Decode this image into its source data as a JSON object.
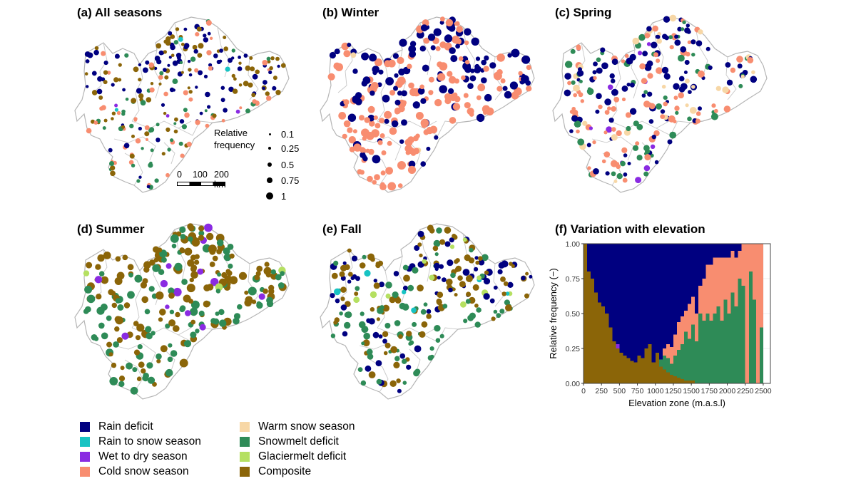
{
  "panels": {
    "a": "(a) All seasons",
    "b": "(b) Winter",
    "c": "(c) Spring",
    "d": "(d) Summer",
    "e": "(e) Fall",
    "f": "(f) Variation with elevation"
  },
  "size_legend": {
    "title_line1": "Relative",
    "title_line2": "frequency",
    "values": [
      "0.1",
      "0.25",
      "0.5",
      "0.75",
      "1"
    ]
  },
  "scale_bar": {
    "t0": "0",
    "t1": "100",
    "t2": "200 km"
  },
  "classes": [
    {
      "name": "Rain deficit",
      "color": "#000080"
    },
    {
      "name": "Rain to snow season",
      "color": "#17c3c3"
    },
    {
      "name": "Wet to dry season",
      "color": "#8a2be2"
    },
    {
      "name": "Cold snow season",
      "color": "#f88d70"
    },
    {
      "name": "Warm snow season",
      "color": "#f7d7a6"
    },
    {
      "name": "Snowmelt deficit",
      "color": "#2e8b57"
    },
    {
      "name": "Glaciermelt deficit",
      "color": "#b5e061"
    },
    {
      "name": "Composite",
      "color": "#8b6508"
    }
  ],
  "chart_data": {
    "type": "area",
    "stacked": true,
    "xlabel": "Elevation zone (m.a.s.l)",
    "ylabel": "Relative frequency (−)",
    "xlim": [
      0,
      2600
    ],
    "ylim": [
      0,
      1
    ],
    "x_ticks": [
      "0",
      "250",
      "500",
      "750",
      "1000",
      "1250",
      "1500",
      "1750",
      "2000",
      "2250",
      "2500"
    ],
    "y_ticks": [
      "0.00",
      "0.25",
      "0.50",
      "0.75",
      "1.00"
    ],
    "bin_width": 50,
    "x": [
      0,
      50,
      100,
      150,
      200,
      250,
      300,
      350,
      400,
      450,
      500,
      550,
      600,
      650,
      700,
      750,
      800,
      850,
      900,
      950,
      1000,
      1050,
      1100,
      1150,
      1200,
      1250,
      1300,
      1350,
      1400,
      1450,
      1500,
      1550,
      1600,
      1650,
      1700,
      1750,
      1800,
      1850,
      1900,
      1950,
      2000,
      2050,
      2100,
      2150,
      2200,
      2250,
      2300,
      2350,
      2400,
      2450,
      2500
    ],
    "series": [
      {
        "name": "Composite",
        "values": [
          1.0,
          0.8,
          0.75,
          0.65,
          0.58,
          0.55,
          0.5,
          0.4,
          0.3,
          0.25,
          0.22,
          0.2,
          0.18,
          0.16,
          0.15,
          0.2,
          0.18,
          0.25,
          0.28,
          0.15,
          0.22,
          0.12,
          0.1,
          0.08,
          0.06,
          0.05,
          0.04,
          0.03,
          0.02,
          0.02,
          0.02,
          0,
          0,
          0,
          0,
          0,
          0,
          0,
          0,
          0,
          0,
          0,
          0,
          0,
          0,
          0,
          0,
          0,
          0,
          0,
          0
        ]
      },
      {
        "name": "Snowmelt deficit",
        "values": [
          0,
          0,
          0,
          0,
          0,
          0,
          0,
          0,
          0,
          0,
          0,
          0,
          0,
          0,
          0,
          0,
          0,
          0,
          0,
          0,
          0,
          0.05,
          0.1,
          0.1,
          0.08,
          0.15,
          0.2,
          0.25,
          0.35,
          0.3,
          0.4,
          0.3,
          0.5,
          0.45,
          0.5,
          0.45,
          0.5,
          0.55,
          0.45,
          0.6,
          0.5,
          0.65,
          0.55,
          0.75,
          0.7,
          0,
          0.8,
          0.6,
          0,
          0.4,
          0
        ]
      },
      {
        "name": "Cold snow season",
        "values": [
          0,
          0,
          0,
          0,
          0,
          0,
          0,
          0,
          0,
          0,
          0,
          0,
          0,
          0,
          0,
          0,
          0,
          0,
          0,
          0,
          0,
          0,
          0.05,
          0.1,
          0.12,
          0.15,
          0.2,
          0.2,
          0.15,
          0.25,
          0.2,
          0.2,
          0.2,
          0.3,
          0.35,
          0.4,
          0.4,
          0.35,
          0.45,
          0.3,
          0.4,
          0.3,
          0.35,
          0.2,
          0.3,
          1.0,
          0.2,
          0.4,
          1.0,
          0.6,
          0
        ]
      },
      {
        "name": "Wet to dry season",
        "values": [
          0,
          0,
          0,
          0,
          0,
          0,
          0,
          0,
          0,
          0.03,
          0,
          0,
          0,
          0,
          0,
          0,
          0,
          0,
          0,
          0,
          0,
          0,
          0,
          0,
          0,
          0,
          0,
          0,
          0,
          0,
          0,
          0,
          0,
          0,
          0,
          0,
          0,
          0,
          0,
          0,
          0,
          0,
          0,
          0,
          0,
          0,
          0,
          0,
          0,
          0,
          0
        ]
      },
      {
        "name": "Rain deficit",
        "values": [
          0,
          0.2,
          0.25,
          0.35,
          0.42,
          0.45,
          0.5,
          0.6,
          0.7,
          0.72,
          0.78,
          0.8,
          0.82,
          0.84,
          0.85,
          0.8,
          0.82,
          0.75,
          0.72,
          0.85,
          0.78,
          0.83,
          0.75,
          0.72,
          0.74,
          0.65,
          0.56,
          0.52,
          0.48,
          0.43,
          0.38,
          0.5,
          0.3,
          0.25,
          0.15,
          0.15,
          0.1,
          0.1,
          0.1,
          0.1,
          0.1,
          0.05,
          0.1,
          0.05,
          0,
          0,
          0,
          0,
          0,
          0,
          0
        ]
      }
    ]
  }
}
